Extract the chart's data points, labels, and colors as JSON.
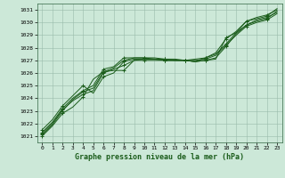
{
  "xlabel": "Graphe pression niveau de la mer (hPa)",
  "xlim": [
    0,
    23
  ],
  "ylim": [
    1020.5,
    1031.5
  ],
  "yticks": [
    1021,
    1022,
    1023,
    1024,
    1025,
    1026,
    1027,
    1028,
    1029,
    1030,
    1031
  ],
  "xticks": [
    0,
    1,
    2,
    3,
    4,
    5,
    6,
    7,
    8,
    9,
    10,
    11,
    12,
    13,
    14,
    15,
    16,
    17,
    18,
    19,
    20,
    21,
    22,
    23
  ],
  "bg_color": "#cce8d8",
  "grid_color": "#99bbaa",
  "line_color": "#1a5c1a",
  "series": [
    [
      1021.0,
      1021.8,
      1022.8,
      1023.3,
      1024.1,
      1025.5,
      1026.1,
      1026.2,
      1026.2,
      1027.0,
      1027.0,
      1027.0,
      1027.0,
      1027.0,
      1027.0,
      1026.9,
      1027.0,
      1027.1,
      1028.8,
      1029.2,
      1030.1,
      1030.3,
      1030.5,
      1031.1
    ],
    [
      1021.2,
      1022.0,
      1023.1,
      1023.8,
      1024.3,
      1024.6,
      1026.0,
      1026.3,
      1026.6,
      1027.0,
      1027.1,
      1027.1,
      1027.1,
      1027.0,
      1027.0,
      1026.9,
      1027.0,
      1027.2,
      1028.1,
      1029.1,
      1029.8,
      1030.2,
      1030.4,
      1030.8
    ],
    [
      1021.3,
      1022.1,
      1023.2,
      1024.0,
      1024.6,
      1025.0,
      1026.3,
      1026.5,
      1027.2,
      1027.2,
      1027.2,
      1027.1,
      1027.0,
      1027.0,
      1027.0,
      1026.9,
      1027.2,
      1027.6,
      1028.7,
      1029.3,
      1030.1,
      1030.4,
      1030.6,
      1031.0
    ],
    [
      1021.1,
      1021.9,
      1023.0,
      1023.9,
      1024.5,
      1024.8,
      1026.1,
      1026.4,
      1027.0,
      1027.2,
      1027.2,
      1027.2,
      1027.1,
      1027.1,
      1027.0,
      1027.1,
      1027.2,
      1027.5,
      1028.3,
      1029.2,
      1029.8,
      1030.1,
      1030.3,
      1030.9
    ],
    [
      1021.5,
      1022.3,
      1023.4,
      1024.2,
      1025.0,
      1024.4,
      1025.7,
      1026.0,
      1026.9,
      1027.1,
      1027.1,
      1027.1,
      1027.0,
      1027.0,
      1027.0,
      1027.0,
      1027.1,
      1027.4,
      1028.2,
      1029.0,
      1029.7,
      1030.0,
      1030.2,
      1030.7
    ]
  ]
}
